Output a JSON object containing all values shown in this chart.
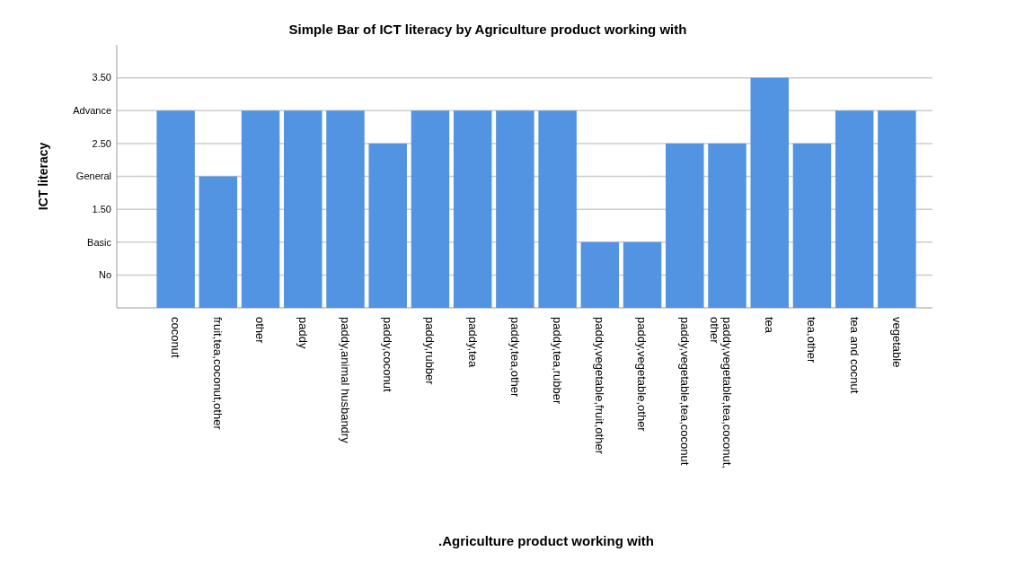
{
  "chart_data": {
    "type": "bar",
    "title": "Simple Bar of ICT literacy by Agriculture product working with",
    "xlabel": ".Agriculture product working with",
    "ylabel": "ICT literacy",
    "categories": [
      "coconut",
      "fruit,tea,coconut,other",
      "other",
      "paddy",
      "paddy,animal husbandry",
      "paddy,coconut",
      "paddy,rubber",
      "paddy,tea",
      "paddy,tea,other",
      "paddy,tea,rubber",
      "paddy,vegetable,fruit,other",
      "paddy,vegetable,other",
      "paddy,vegetable,tea,coconut",
      "paddy,vegetable,tea,coconut,other",
      "tea",
      "tea,other",
      "tea and cocnut",
      "vegetable"
    ],
    "values": [
      3,
      2,
      3,
      3,
      3,
      2.5,
      3,
      3,
      3,
      3,
      1,
      1,
      2.5,
      2.5,
      3.5,
      2.5,
      3,
      3
    ],
    "color": "#5294e2",
    "ylim": [
      0,
      4
    ],
    "yticks": [
      {
        "value": 0.5,
        "label": "No"
      },
      {
        "value": 1,
        "label": "Basic"
      },
      {
        "value": 1.5,
        "label": "1.50"
      },
      {
        "value": 2,
        "label": "General"
      },
      {
        "value": 2.5,
        "label": "2.50"
      },
      {
        "value": 3,
        "label": "Advance"
      },
      {
        "value": 3.5,
        "label": "3.50"
      }
    ],
    "grid": "y"
  }
}
